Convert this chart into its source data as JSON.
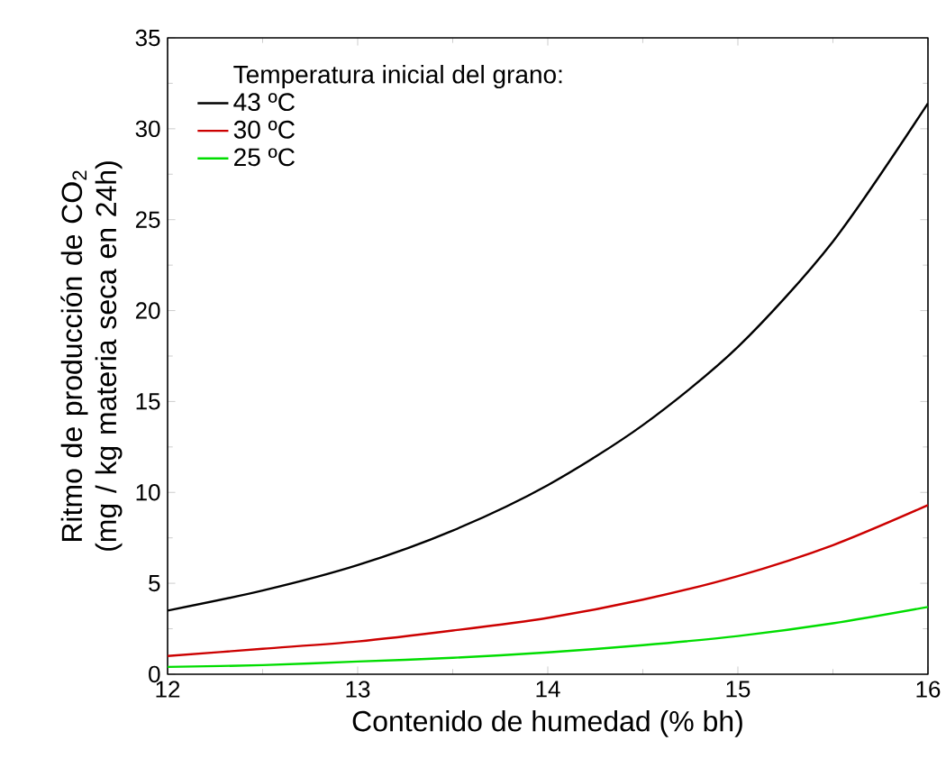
{
  "chart_data": {
    "type": "line",
    "xlabel": "Contenido de humedad (% bh)",
    "ylabel": "Ritmo de producción de CO$_{2}$ (mg / kg materia seca en 24h)",
    "legend_title": "Temperatura inicial del grano:",
    "x": [
      12,
      12.5,
      13,
      13.5,
      14,
      14.5,
      15,
      15.5,
      16
    ],
    "series": [
      {
        "name": "43 ºC",
        "color": "#000000",
        "values": [
          3.5,
          4.6,
          6.0,
          7.9,
          10.4,
          13.7,
          18.0,
          23.8,
          31.4
        ]
      },
      {
        "name": "30 ºC",
        "color": "#cc0000",
        "values": [
          1.0,
          1.4,
          1.8,
          2.4,
          3.1,
          4.1,
          5.4,
          7.1,
          9.3
        ]
      },
      {
        "name": "25 ºC",
        "color": "#00dd00",
        "values": [
          0.4,
          0.5,
          0.7,
          0.9,
          1.2,
          1.6,
          2.1,
          2.8,
          3.7
        ]
      }
    ],
    "xlim": [
      12,
      16
    ],
    "xticks": [
      12,
      13,
      14,
      15,
      16
    ],
    "ylim": [
      0,
      35
    ],
    "yticks": [
      0,
      5,
      10,
      15,
      20,
      25,
      30,
      35
    ],
    "grid": false,
    "legend": "top left",
    "marker": "none",
    "line_style": "solid"
  }
}
